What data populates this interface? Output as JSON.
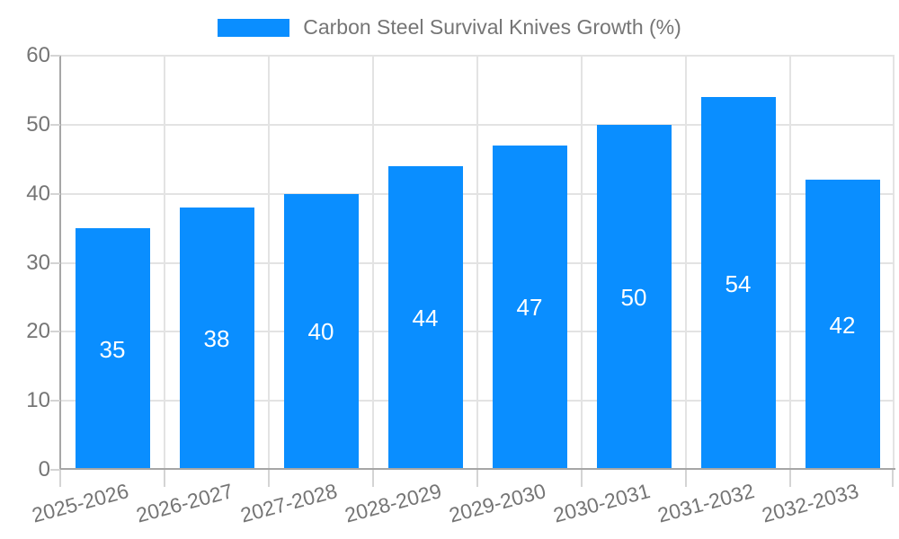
{
  "chart_data": {
    "type": "bar",
    "title": "Carbon Steel Survival Knives Growth (%)",
    "categories": [
      "2025-2026",
      "2026-2027",
      "2027-2028",
      "2028-2029",
      "2029-2030",
      "2030-2031",
      "2031-2032",
      "2032-2033"
    ],
    "values": [
      35,
      38,
      40,
      44,
      47,
      50,
      54,
      42
    ],
    "xlabel": "",
    "ylabel": "",
    "ylim": [
      0,
      60
    ],
    "yticks": [
      0,
      10,
      20,
      30,
      40,
      50,
      60
    ],
    "grid": true,
    "legend_position": "top",
    "value_labels": "centered-inside-bars",
    "colors": {
      "bar": "#0a8eff",
      "value_label": "#ffffff",
      "axis_text": "#757575",
      "gridline": "#e3e3e3",
      "axis_line": "#a6a6a6",
      "tick_mark": "#d4d4d4",
      "background": "#ffffff"
    }
  }
}
